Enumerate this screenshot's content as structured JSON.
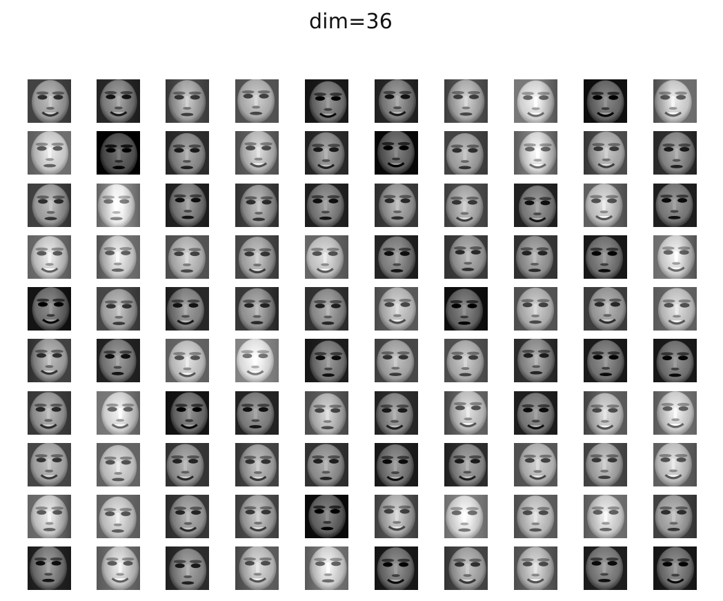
{
  "figure": {
    "title": "dim=36"
  },
  "grid": {
    "rows": 10,
    "cols": 10,
    "colormap": "gray",
    "tile_kind": "reconstructed-face-thumbnail",
    "brightness": [
      [
        0.48,
        0.38,
        0.52,
        0.55,
        0.32,
        0.38,
        0.55,
        0.7,
        0.28,
        0.66
      ],
      [
        0.66,
        0.18,
        0.4,
        0.6,
        0.4,
        0.25,
        0.48,
        0.72,
        0.52,
        0.4
      ],
      [
        0.48,
        0.8,
        0.36,
        0.48,
        0.36,
        0.46,
        0.52,
        0.36,
        0.62,
        0.34
      ],
      [
        0.66,
        0.68,
        0.56,
        0.52,
        0.62,
        0.36,
        0.46,
        0.44,
        0.32,
        0.7
      ],
      [
        0.3,
        0.5,
        0.38,
        0.44,
        0.42,
        0.58,
        0.28,
        0.56,
        0.46,
        0.62
      ],
      [
        0.48,
        0.36,
        0.62,
        0.76,
        0.34,
        0.5,
        0.54,
        0.42,
        0.32,
        0.32
      ],
      [
        0.46,
        0.7,
        0.3,
        0.36,
        0.58,
        0.4,
        0.62,
        0.34,
        0.6,
        0.68
      ],
      [
        0.5,
        0.62,
        0.44,
        0.5,
        0.42,
        0.34,
        0.4,
        0.56,
        0.52,
        0.62
      ],
      [
        0.66,
        0.64,
        0.44,
        0.52,
        0.26,
        0.56,
        0.74,
        0.6,
        0.68,
        0.48
      ],
      [
        0.36,
        0.66,
        0.4,
        0.6,
        0.7,
        0.32,
        0.5,
        0.6,
        0.34,
        0.32
      ]
    ]
  }
}
